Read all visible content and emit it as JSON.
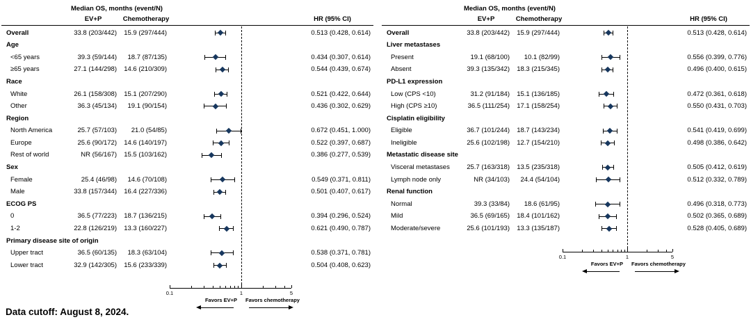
{
  "colors": {
    "marker": "#17375e",
    "line": "#000000",
    "background": "#ffffff"
  },
  "footer": {
    "data_cutoff": "Data cutoff: August 8, 2024."
  },
  "chart_data": {
    "type": "forest_plot",
    "title": "",
    "x_axis": {
      "scale": "log",
      "min": 0.1,
      "max": 5,
      "reference": 1,
      "labeled_ticks": [
        "0.1",
        "1",
        "5"
      ],
      "labeled_tick_values": [
        0.1,
        1,
        5
      ],
      "minor_ticks": [
        0.2,
        0.3,
        0.4,
        0.5,
        0.6,
        0.7,
        0.8,
        0.9,
        2,
        3,
        4
      ]
    },
    "favors_left": "Favors EV+P",
    "favors_right": "Favors chemotherapy",
    "panels": [
      {
        "header": {
          "group_title": "Median OS, months (event/N)",
          "col_treatment": "EV+P",
          "col_control": "Chemotherapy",
          "col_hr": "HR (95% CI)"
        },
        "rows": [
          {
            "type": "data",
            "bold": true,
            "label": "Overall",
            "evp": "33.8 (203/442)",
            "chemo": "15.9 (297/444)",
            "hr": 0.513,
            "lo": 0.428,
            "hi": 0.614,
            "hr_text": "0.513 (0.428, 0.614)"
          },
          {
            "type": "section",
            "label": "Age"
          },
          {
            "type": "data",
            "label": "<65 years",
            "evp": "39.3 (59/144)",
            "chemo": "18.7 (87/135)",
            "hr": 0.434,
            "lo": 0.307,
            "hi": 0.614,
            "hr_text": "0.434 (0.307, 0.614)"
          },
          {
            "type": "data",
            "label": "≥65 years",
            "evp": "27.1 (144/298)",
            "chemo": "14.6 (210/309)",
            "hr": 0.544,
            "lo": 0.439,
            "hi": 0.674,
            "hr_text": "0.544 (0.439, 0.674)"
          },
          {
            "type": "section",
            "label": "Race"
          },
          {
            "type": "data",
            "label": "White",
            "evp": "26.1 (158/308)",
            "chemo": "15.1 (207/290)",
            "hr": 0.521,
            "lo": 0.422,
            "hi": 0.644,
            "hr_text": "0.521 (0.422, 0.644)"
          },
          {
            "type": "data",
            "label": "Other",
            "evp": "36.3 (45/134)",
            "chemo": "19.1 (90/154)",
            "hr": 0.436,
            "lo": 0.302,
            "hi": 0.629,
            "hr_text": "0.436 (0.302, 0.629)"
          },
          {
            "type": "section",
            "label": "Region"
          },
          {
            "type": "data",
            "label": "North America",
            "evp": "25.7 (57/103)",
            "chemo": "21.0 (54/85)",
            "hr": 0.672,
            "lo": 0.451,
            "hi": 1.0,
            "hr_text": "0.672 (0.451, 1.000)"
          },
          {
            "type": "data",
            "label": "Europe",
            "evp": "25.6 (90/172)",
            "chemo": "14.6 (140/197)",
            "hr": 0.522,
            "lo": 0.397,
            "hi": 0.687,
            "hr_text": "0.522 (0.397, 0.687)"
          },
          {
            "type": "data",
            "label": "Rest of world",
            "evp": "NR (56/167)",
            "chemo": "15.5 (103/162)",
            "hr": 0.386,
            "lo": 0.277,
            "hi": 0.539,
            "hr_text": "0.386 (0.277, 0.539)"
          },
          {
            "type": "section",
            "label": "Sex"
          },
          {
            "type": "data",
            "label": "Female",
            "evp": "25.4 (46/98)",
            "chemo": "14.6 (70/108)",
            "hr": 0.549,
            "lo": 0.371,
            "hi": 0.811,
            "hr_text": "0.549 (0.371, 0.811)"
          },
          {
            "type": "data",
            "label": "Male",
            "evp": "33.8 (157/344)",
            "chemo": "16.4 (227/336)",
            "hr": 0.501,
            "lo": 0.407,
            "hi": 0.617,
            "hr_text": "0.501 (0.407, 0.617)"
          },
          {
            "type": "section",
            "label": "ECOG PS"
          },
          {
            "type": "data",
            "label": "0",
            "evp": "36.5 (77/223)",
            "chemo": "18.7 (136/215)",
            "hr": 0.394,
            "lo": 0.296,
            "hi": 0.524,
            "hr_text": "0.394 (0.296, 0.524)"
          },
          {
            "type": "data",
            "label": "1-2",
            "evp": "22.8 (126/219)",
            "chemo": "13.3 (160/227)",
            "hr": 0.621,
            "lo": 0.49,
            "hi": 0.787,
            "hr_text": "0.621 (0.490, 0.787)"
          },
          {
            "type": "section",
            "label": "Primary disease site of origin"
          },
          {
            "type": "data",
            "label": "Upper tract",
            "evp": "36.5 (60/135)",
            "chemo": "18.3 (63/104)",
            "hr": 0.538,
            "lo": 0.371,
            "hi": 0.781,
            "hr_text": "0.538 (0.371, 0.781)"
          },
          {
            "type": "data",
            "label": "Lower tract",
            "evp": "32.9 (142/305)",
            "chemo": "15.6 (233/339)",
            "hr": 0.504,
            "lo": 0.408,
            "hi": 0.623,
            "hr_text": "0.504 (0.408, 0.623)"
          }
        ]
      },
      {
        "header": {
          "group_title": "Median OS, months (event/N)",
          "col_treatment": "EV+P",
          "col_control": "Chemotherapy",
          "col_hr": "HR (95% CI)"
        },
        "rows": [
          {
            "type": "data",
            "bold": true,
            "label": "Overall",
            "evp": "33.8 (203/442)",
            "chemo": "15.9 (297/444)",
            "hr": 0.513,
            "lo": 0.428,
            "hi": 0.614,
            "hr_text": "0.513 (0.428, 0.614)"
          },
          {
            "type": "section",
            "label": "Liver metastases"
          },
          {
            "type": "data",
            "label": "Present",
            "evp": "19.1 (68/100)",
            "chemo": "10.1 (82/99)",
            "hr": 0.556,
            "lo": 0.399,
            "hi": 0.776,
            "hr_text": "0.556 (0.399, 0.776)"
          },
          {
            "type": "data",
            "label": "Absent",
            "evp": "39.3 (135/342)",
            "chemo": "18.3 (215/345)",
            "hr": 0.496,
            "lo": 0.4,
            "hi": 0.615,
            "hr_text": "0.496 (0.400, 0.615)"
          },
          {
            "type": "section",
            "label": "PD-L1 expression"
          },
          {
            "type": "data",
            "label": "Low (CPS <10)",
            "evp": "31.2 (91/184)",
            "chemo": "15.1 (136/185)",
            "hr": 0.472,
            "lo": 0.361,
            "hi": 0.618,
            "hr_text": "0.472 (0.361, 0.618)"
          },
          {
            "type": "data",
            "label": "High (CPS ≥10)",
            "evp": "36.5 (111/254)",
            "chemo": "17.1 (158/254)",
            "hr": 0.55,
            "lo": 0.431,
            "hi": 0.703,
            "hr_text": "0.550 (0.431, 0.703)"
          },
          {
            "type": "section",
            "label": "Cisplatin eligibility"
          },
          {
            "type": "data",
            "label": "Eligible",
            "evp": "36.7 (101/244)",
            "chemo": "18.7 (143/234)",
            "hr": 0.541,
            "lo": 0.419,
            "hi": 0.699,
            "hr_text": "0.541 (0.419, 0.699)"
          },
          {
            "type": "data",
            "label": "Ineligible",
            "evp": "25.6 (102/198)",
            "chemo": "12.7 (154/210)",
            "hr": 0.498,
            "lo": 0.386,
            "hi": 0.642,
            "hr_text": "0.498 (0.386, 0.642)"
          },
          {
            "type": "section",
            "label": "Metastatic disease site"
          },
          {
            "type": "data",
            "label": "Visceral metastases",
            "evp": "25.7 (163/318)",
            "chemo": "13.5 (235/318)",
            "hr": 0.505,
            "lo": 0.412,
            "hi": 0.619,
            "hr_text": "0.505 (0.412, 0.619)"
          },
          {
            "type": "data",
            "label": "Lymph node only",
            "evp": "NR (34/103)",
            "chemo": "24.4 (54/104)",
            "hr": 0.512,
            "lo": 0.332,
            "hi": 0.789,
            "hr_text": "0.512 (0.332, 0.789)"
          },
          {
            "type": "section",
            "label": "Renal function"
          },
          {
            "type": "data",
            "label": "Normal",
            "evp": "39.3 (33/84)",
            "chemo": "18.6 (61/95)",
            "hr": 0.496,
            "lo": 0.318,
            "hi": 0.773,
            "hr_text": "0.496 (0.318, 0.773)"
          },
          {
            "type": "data",
            "label": "Mild",
            "evp": "36.5 (69/165)",
            "chemo": "18.4 (101/162)",
            "hr": 0.502,
            "lo": 0.365,
            "hi": 0.689,
            "hr_text": "0.502 (0.365, 0.689)"
          },
          {
            "type": "data",
            "label": "Moderate/severe",
            "evp": "25.6 (101/193)",
            "chemo": "13.3 (135/187)",
            "hr": 0.528,
            "lo": 0.405,
            "hi": 0.689,
            "hr_text": "0.528 (0.405, 0.689)"
          }
        ]
      }
    ]
  }
}
